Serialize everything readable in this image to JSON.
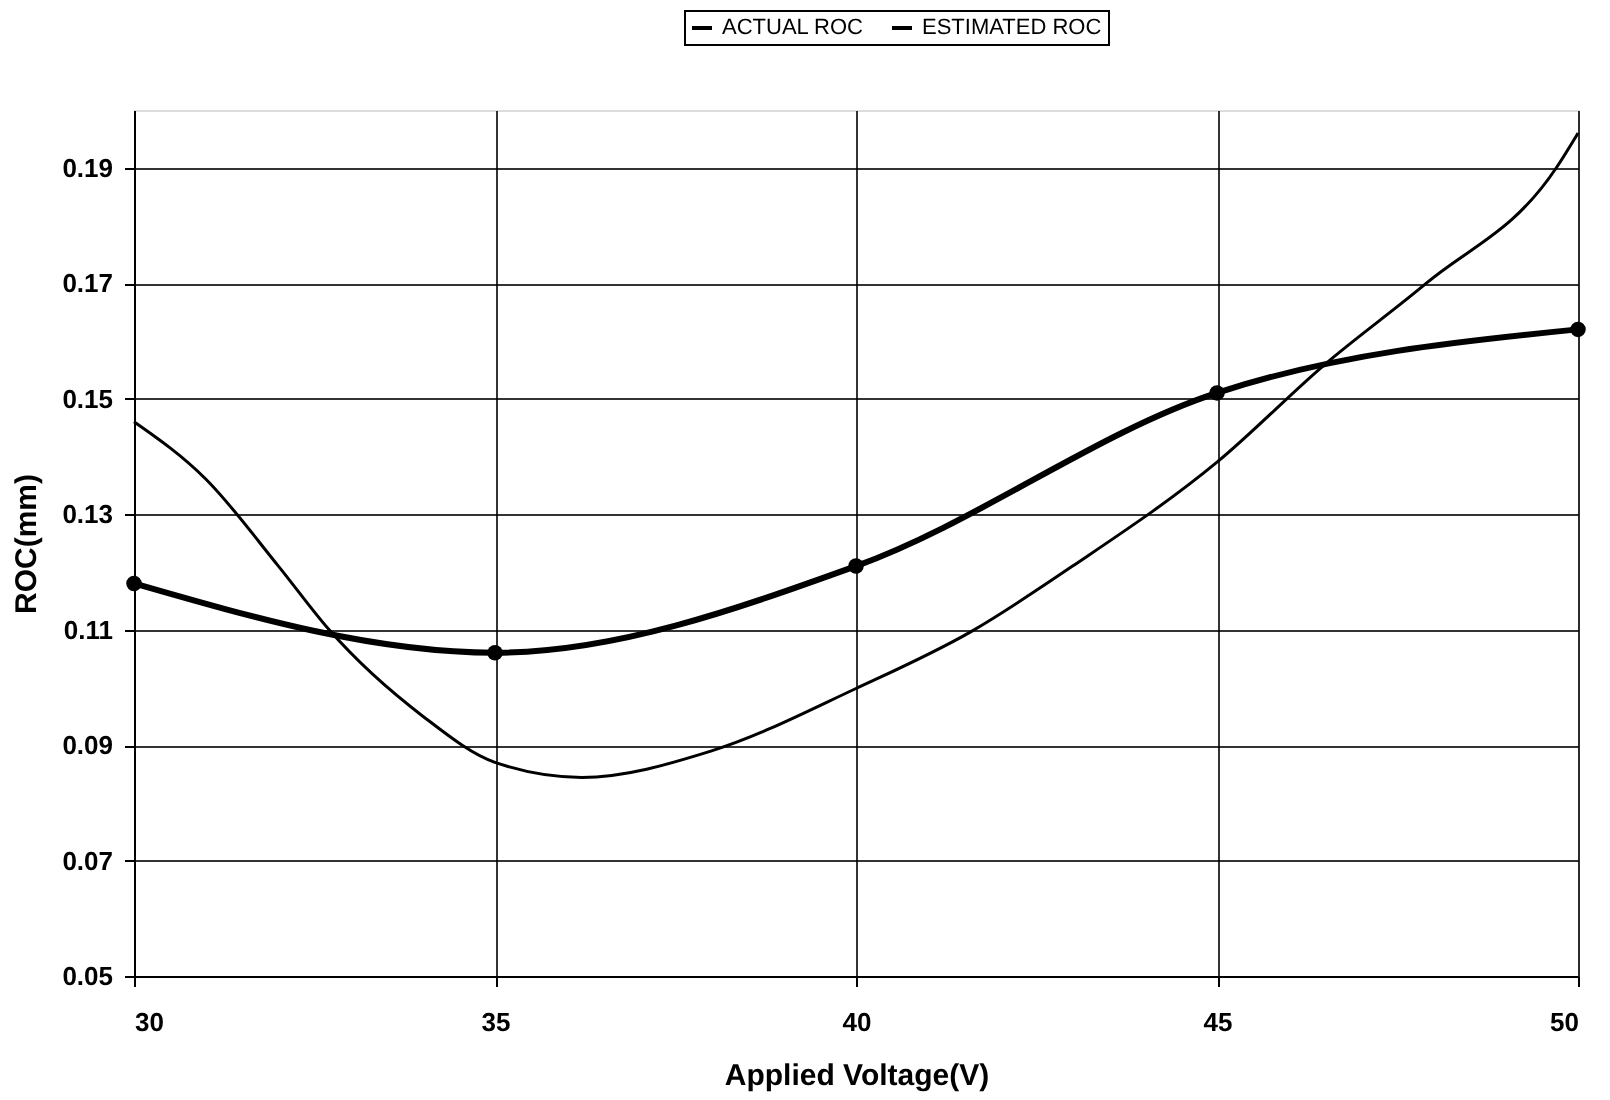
{
  "chart_data": {
    "type": "line",
    "xlabel": "Applied Voltage(V)",
    "ylabel": "ROC(mm)",
    "xlim": [
      30,
      50
    ],
    "xticks": [
      30,
      35,
      40,
      45,
      50
    ],
    "ylim": [
      0.05,
      0.2
    ],
    "yticks": [
      0.05,
      0.07,
      0.09,
      0.11,
      0.13,
      0.15,
      0.17,
      0.19
    ],
    "grid": true,
    "legend": "top",
    "line_style": "solid",
    "series": [
      {
        "name": "ACTUAL ROC",
        "color": "#000000",
        "marker": "circle",
        "x": [
          30,
          35,
          40,
          45,
          50
        ],
        "values": [
          0.118,
          0.106,
          0.121,
          0.151,
          0.162
        ]
      },
      {
        "name": "ESTIMATED ROC",
        "color": "#000000",
        "marker": "none",
        "x": [
          30,
          31,
          32,
          32.7,
          34,
          35,
          36.2,
          38,
          40,
          41.6,
          43,
          45,
          46.5,
          47.9,
          49.7,
          50
        ],
        "values": [
          0.146,
          0.136,
          0.121,
          0.11,
          0.095,
          0.087,
          0.0844,
          0.089,
          0.0998,
          0.1097,
          0.121,
          0.139,
          0.156,
          0.17,
          0.19,
          0.196
        ]
      }
    ]
  }
}
